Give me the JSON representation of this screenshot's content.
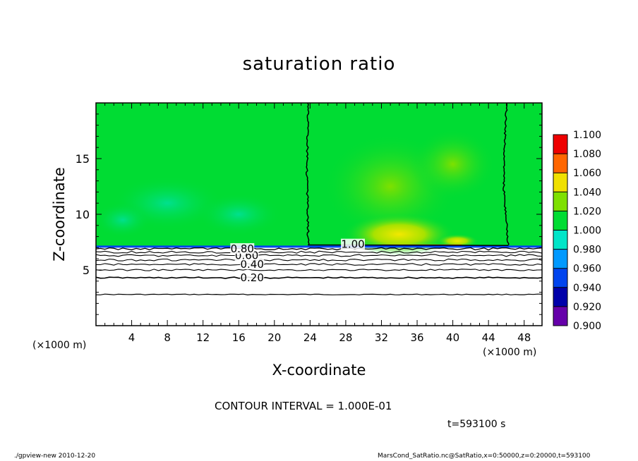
{
  "chart_data": {
    "type": "heatmap",
    "title": "saturation ratio",
    "xlabel": "X-coordinate",
    "ylabel": "Z-coordinate",
    "x_unit": "(×1000 m)",
    "xlim": [
      0,
      50
    ],
    "ylim": [
      0,
      20
    ],
    "x_ticks": [
      4,
      8,
      12,
      16,
      20,
      24,
      28,
      32,
      36,
      40,
      44,
      48
    ],
    "y_ticks": [
      5,
      10,
      15
    ],
    "colorbar": {
      "levels": [
        "0.900",
        "0.920",
        "0.940",
        "0.960",
        "0.980",
        "1.000",
        "1.020",
        "1.040",
        "1.060",
        "1.080",
        "1.100"
      ],
      "colors": [
        "#6600aa",
        "#0000aa",
        "#0044ee",
        "#0099ff",
        "#00e5c8",
        "#00dc33",
        "#7ee000",
        "#f0e000",
        "#ff6600",
        "#ee0000",
        "#ff8c8c"
      ]
    },
    "contour_labels": [
      {
        "text": "0.20",
        "x": 17.5,
        "z": 4.3
      },
      {
        "text": "0.40",
        "x": 17.5,
        "z": 5.5
      },
      {
        "text": "0.60",
        "x": 16.9,
        "z": 6.3
      },
      {
        "text": "0.80",
        "x": 16.4,
        "z": 6.9
      },
      {
        "text": "1.00",
        "x": 28.8,
        "z": 7.3
      }
    ],
    "contour_interval": "1.000E-01"
  },
  "annotations": {
    "contour_interval_text": "CONTOUR INTERVAL = 1.000E-01",
    "time_text": "t=593100 s",
    "footer_left": "./gpview-new  2010-12-20",
    "footer_right": "MarsCond_SatRatio.nc@SatRatio,x=0:50000,z=0:20000,t=593100"
  }
}
